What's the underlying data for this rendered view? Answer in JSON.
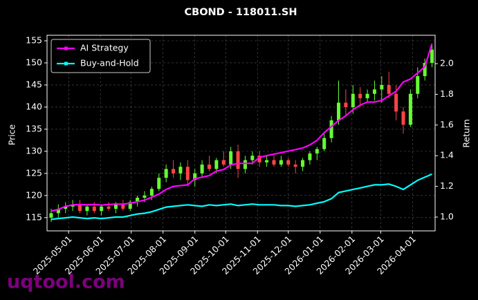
{
  "chart_data": {
    "type": "candlestick",
    "title": "CBOND - 118011.SH",
    "ylabel": "Price",
    "y2label": "Return",
    "watermark": "uqtool.com",
    "x": [
      "2025-04-14",
      "2025-04-21",
      "2025-04-28",
      "2025-05-05",
      "2025-05-12",
      "2025-05-19",
      "2025-05-26",
      "2025-06-02",
      "2025-06-09",
      "2025-06-16",
      "2025-06-23",
      "2025-06-30",
      "2025-07-07",
      "2025-07-14",
      "2025-07-21",
      "2025-07-28",
      "2025-08-04",
      "2025-08-11",
      "2025-08-18",
      "2025-08-25",
      "2025-09-01",
      "2025-09-08",
      "2025-09-15",
      "2025-09-22",
      "2025-09-29",
      "2025-10-06",
      "2025-10-13",
      "2025-10-20",
      "2025-10-27",
      "2025-11-03",
      "2025-11-10",
      "2025-11-17",
      "2025-11-24",
      "2025-12-01",
      "2025-12-08",
      "2025-12-15",
      "2025-12-22",
      "2025-12-29",
      "2026-01-05",
      "2026-01-12",
      "2026-01-19",
      "2026-01-26",
      "2026-02-02",
      "2026-02-09",
      "2026-02-16",
      "2026-02-23",
      "2026-03-02",
      "2026-03-09",
      "2026-03-16",
      "2026-03-23",
      "2026-03-30",
      "2026-04-06",
      "2026-04-13",
      "2026-04-20"
    ],
    "open": [
      115,
      116,
      117,
      117.5,
      118,
      116.5,
      117.5,
      116.5,
      117.5,
      117,
      118,
      117,
      118.5,
      119.5,
      120,
      121.5,
      124,
      126,
      125,
      126.5,
      123.5,
      125,
      127,
      126,
      128,
      127,
      130,
      126,
      128,
      129,
      127.5,
      128,
      127,
      128,
      127,
      126.5,
      128,
      129.5,
      130.5,
      133,
      137,
      141,
      140,
      143,
      142,
      143,
      144,
      145,
      143,
      139,
      136,
      143,
      147,
      150
    ],
    "high": [
      117,
      118,
      118.5,
      119,
      119,
      118,
      118.5,
      118,
      118.5,
      118.5,
      119,
      119,
      120,
      121,
      122,
      125,
      127,
      128,
      127.5,
      128,
      126,
      128,
      129,
      128.5,
      130,
      131,
      131.5,
      129,
      130,
      130,
      129,
      129,
      129,
      128.5,
      128,
      128.5,
      130,
      131,
      134,
      138,
      146,
      144,
      145,
      144.5,
      144,
      146,
      147,
      148,
      145,
      140,
      144,
      149,
      151,
      154
    ],
    "low": [
      114,
      115,
      116,
      116.5,
      116,
      115.5,
      116,
      115.5,
      116.5,
      116,
      116.5,
      116.5,
      117.5,
      118.5,
      119,
      121,
      123,
      124,
      123.5,
      122,
      122,
      124,
      125.5,
      125,
      126.5,
      126,
      124,
      125,
      127,
      126.5,
      126.5,
      126.5,
      126.5,
      126.5,
      125,
      125.5,
      127,
      128,
      130,
      132,
      136,
      138,
      138.5,
      140,
      141,
      141.5,
      141,
      142,
      137,
      134,
      135.5,
      142,
      146,
      149
    ],
    "close": [
      116,
      117,
      117.5,
      118,
      116.5,
      117.5,
      116.5,
      117.5,
      117,
      118,
      117,
      118.5,
      119.5,
      120,
      121.5,
      124,
      126,
      125,
      126.5,
      123.5,
      125,
      127,
      126,
      128,
      127,
      130,
      126,
      128,
      129,
      127.5,
      128,
      127,
      128,
      127,
      126.5,
      128,
      129.5,
      130.5,
      133,
      137,
      141,
      140,
      143,
      142,
      143,
      144,
      145,
      143,
      139,
      136,
      143,
      147,
      150,
      153
    ],
    "up_color": "#66ff33",
    "down_color": "#ff4444",
    "series": [
      {
        "name": "AI Strategy",
        "color": "#ff00ff",
        "axis": "y2",
        "values": [
          1.039,
          1.05,
          1.07,
          1.08,
          1.082,
          1.08,
          1.082,
          1.078,
          1.082,
          1.085,
          1.084,
          1.09,
          1.1,
          1.11,
          1.13,
          1.15,
          1.18,
          1.2,
          1.205,
          1.21,
          1.25,
          1.26,
          1.27,
          1.3,
          1.31,
          1.34,
          1.35,
          1.35,
          1.35,
          1.39,
          1.4,
          1.41,
          1.42,
          1.43,
          1.44,
          1.45,
          1.47,
          1.5,
          1.55,
          1.59,
          1.63,
          1.66,
          1.7,
          1.73,
          1.75,
          1.75,
          1.76,
          1.79,
          1.82,
          1.88,
          1.9,
          1.94,
          1.98,
          2.13
        ]
      },
      {
        "name": "Buy-and-Hold",
        "color": "#00ffff",
        "axis": "y2",
        "values": [
          0.985,
          0.99,
          0.995,
          1.0,
          0.995,
          0.99,
          0.995,
          0.99,
          0.995,
          1.0,
          1.0,
          1.01,
          1.02,
          1.025,
          1.035,
          1.05,
          1.065,
          1.07,
          1.075,
          1.08,
          1.075,
          1.07,
          1.08,
          1.075,
          1.08,
          1.085,
          1.075,
          1.08,
          1.085,
          1.08,
          1.08,
          1.08,
          1.075,
          1.075,
          1.07,
          1.075,
          1.08,
          1.09,
          1.1,
          1.12,
          1.16,
          1.17,
          1.18,
          1.19,
          1.2,
          1.21,
          1.21,
          1.215,
          1.2,
          1.18,
          1.21,
          1.24,
          1.26,
          1.28
        ]
      }
    ],
    "xlim": [
      "2025-04-10",
      "2026-04-23"
    ],
    "xticks": [
      "2025-05-01",
      "2025-06-01",
      "2025-07-01",
      "2025-08-01",
      "2025-09-01",
      "2025-10-01",
      "2025-11-01",
      "2025-12-01",
      "2026-01-01",
      "2026-02-01",
      "2026-03-01",
      "2026-04-01"
    ],
    "ylim": [
      112,
      156.25
    ],
    "yticks": [
      115,
      120,
      125,
      130,
      135,
      140,
      145,
      150,
      155
    ],
    "y2lim": [
      0.91,
      2.185
    ],
    "y2ticks": [
      {
        "value": 1,
        "label": "1.0"
      },
      {
        "value": 1.2,
        "label": "1.2"
      },
      {
        "value": 1.4,
        "label": "1.4"
      },
      {
        "value": 1.6,
        "label": "1.6"
      },
      {
        "value": 1.8,
        "label": "1.8"
      },
      {
        "value": 2,
        "label": "2.0"
      }
    ],
    "grid": true,
    "legend": "upper left"
  }
}
